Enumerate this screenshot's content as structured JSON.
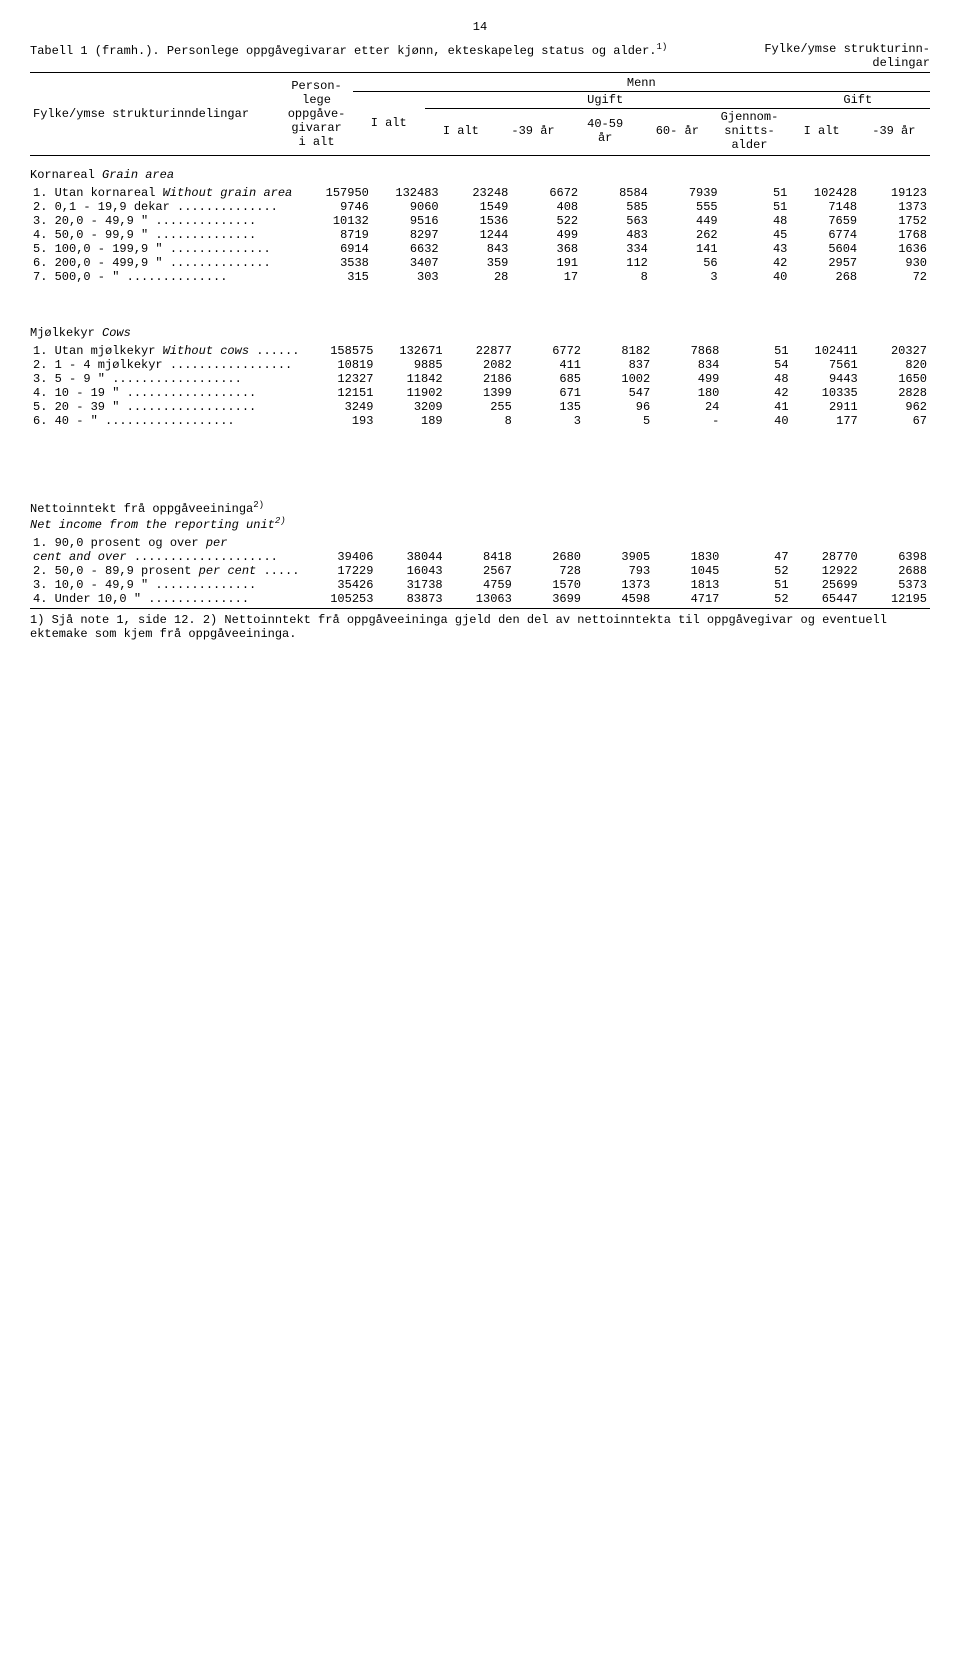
{
  "page_number": "14",
  "title_left": "Tabell 1 (framh.).  Personlege oppgåvegivarar etter kjønn, ekteskapeleg status og alder.",
  "title_sup": "1)",
  "title_right": "Fylke/ymse strukturinn-",
  "title_right2": "delingar",
  "row_label_header": "Fylke/ymse strukturinndelingar",
  "col_personlege": "Person-\nlege\noppgåve-\ngivarar\ni alt",
  "col_ialt": "I alt",
  "col_menn": "Menn",
  "col_ugift": "Ugift",
  "col_gift": "Gift",
  "col_ialt2": "I alt",
  "col_neg39": "-39 år",
  "col_40_59": "40-59\når",
  "col_60": "60- år",
  "col_gjennom": "Gjennom-\nsnitts-\nalder",
  "col_ialt3": "I alt",
  "col_neg39b": "-39 år",
  "section1_title": "Kornareal",
  "section1_italic": "Grain area",
  "section1_rows": [
    {
      "label": "1. Utan kornareal  <i>Without grain area</i>",
      "v": [
        "157950",
        "132483",
        "23248",
        "6672",
        "8584",
        "7939",
        "51",
        "102428",
        "19123"
      ]
    },
    {
      "label": "2.   0,1 -  19,9 dekar ..............",
      "v": [
        "9746",
        "9060",
        "1549",
        "408",
        "585",
        "555",
        "51",
        "7148",
        "1373"
      ]
    },
    {
      "label": "3.  20,0 -  49,9   \"   ..............",
      "v": [
        "10132",
        "9516",
        "1536",
        "522",
        "563",
        "449",
        "48",
        "7659",
        "1752"
      ]
    },
    {
      "label": "4.  50,0 -  99,9   \"   ..............",
      "v": [
        "8719",
        "8297",
        "1244",
        "499",
        "483",
        "262",
        "45",
        "6774",
        "1768"
      ]
    },
    {
      "label": "5. 100,0 - 199,9   \"   ..............",
      "v": [
        "6914",
        "6632",
        "843",
        "368",
        "334",
        "141",
        "43",
        "5604",
        "1636"
      ]
    },
    {
      "label": "6. 200,0 - 499,9   \"   ..............",
      "v": [
        "3538",
        "3407",
        "359",
        "191",
        "112",
        "56",
        "42",
        "2957",
        "930"
      ]
    },
    {
      "label": "7. 500,0 -         \"   ..............",
      "v": [
        "315",
        "303",
        "28",
        "17",
        "8",
        "3",
        "40",
        "268",
        "72"
      ]
    }
  ],
  "section2_title": "Mjølkekyr",
  "section2_italic": "Cows",
  "section2_rows": [
    {
      "label": "1. Utan mjølkekyr  <i>Without cows</i> ......",
      "v": [
        "158575",
        "132671",
        "22877",
        "6772",
        "8182",
        "7868",
        "51",
        "102411",
        "20327"
      ]
    },
    {
      "label": "2.  1 -  4 mjølkekyr .................",
      "v": [
        "10819",
        "9885",
        "2082",
        "411",
        "837",
        "834",
        "54",
        "7561",
        "820"
      ]
    },
    {
      "label": "3.  5 -  9    \"    ..................",
      "v": [
        "12327",
        "11842",
        "2186",
        "685",
        "1002",
        "499",
        "48",
        "9443",
        "1650"
      ]
    },
    {
      "label": "4. 10 - 19    \"    ..................",
      "v": [
        "12151",
        "11902",
        "1399",
        "671",
        "547",
        "180",
        "42",
        "10335",
        "2828"
      ]
    },
    {
      "label": "5. 20 - 39    \"    ..................",
      "v": [
        "3249",
        "3209",
        "255",
        "135",
        "96",
        "24",
        "41",
        "2911",
        "962"
      ]
    },
    {
      "label": "6. 40 -       \"    ..................",
      "v": [
        "193",
        "189",
        "8",
        "3",
        "5",
        "-",
        "40",
        "177",
        "67"
      ]
    }
  ],
  "section3_title": "Nettoinntekt frå oppgåveeininga",
  "section3_sup": "2)",
  "section3_italic": "Net income from the reporting unit",
  "section3_italic_sup": "2)",
  "section3_rows": [
    {
      "label": "1. 90,0 prosent og over  <i>per</i>",
      "v": [
        "",
        "",
        "",
        "",
        "",
        "",
        "",
        "",
        ""
      ]
    },
    {
      "label": "   <i>cent and over</i> ....................",
      "v": [
        "39406",
        "38044",
        "8418",
        "2680",
        "3905",
        "1830",
        "47",
        "28770",
        "6398"
      ]
    },
    {
      "label": "2. 50,0 - 89,9 prosent  <i>per cent</i> .....",
      "v": [
        "17229",
        "16043",
        "2567",
        "728",
        "793",
        "1045",
        "52",
        "12922",
        "2688"
      ]
    },
    {
      "label": "3. 10,0 - 49,9    \"    ..............",
      "v": [
        "35426",
        "31738",
        "4759",
        "1570",
        "1373",
        "1813",
        "51",
        "25699",
        "5373"
      ]
    },
    {
      "label": "4. Under 10,0     \"    ..............",
      "v": [
        "105253",
        "83873",
        "13063",
        "3699",
        "4598",
        "4717",
        "52",
        "65447",
        "12195"
      ]
    }
  ],
  "footnote": "1) Sjå note 1, side 12.   2) Nettoinntekt frå oppgåveeininga gjeld den del av nettoinntekta til oppgåvegivar og eventuell ektemake som kjem frå oppgåveeininga."
}
